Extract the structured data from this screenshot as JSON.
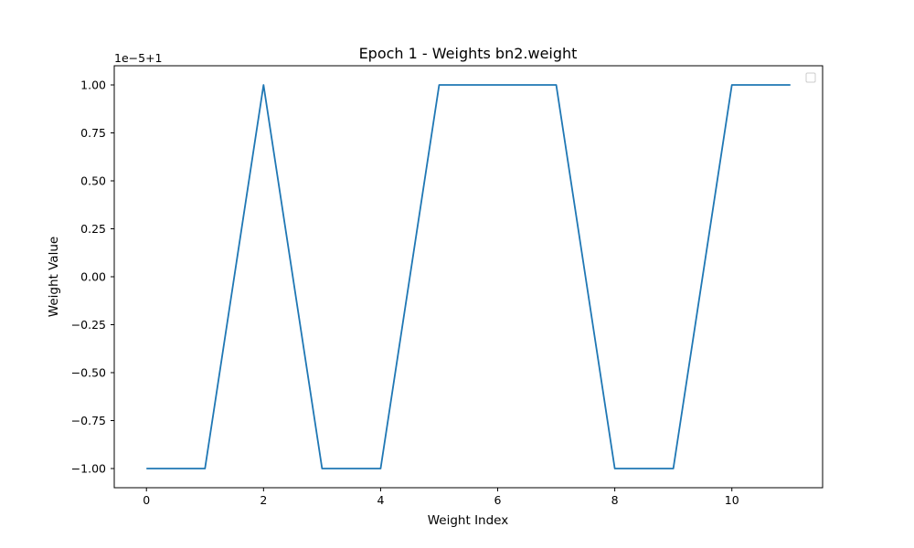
{
  "chart_data": {
    "type": "line",
    "title": "Epoch 1 - Weights bn2.weight",
    "xlabel": "Weight Index",
    "ylabel": "Weight Value",
    "offset_label": "1e−5+1",
    "x": [
      0,
      1,
      2,
      3,
      4,
      5,
      6,
      7,
      8,
      9,
      10,
      11
    ],
    "series": [
      {
        "values": [
          -1.0,
          -1.0,
          1.0,
          -1.0,
          -1.0,
          1.0,
          1.0,
          1.0,
          -1.0,
          -1.0,
          1.0,
          1.0
        ],
        "color": "#1f77b4"
      }
    ],
    "xlim": [
      -0.55,
      11.55
    ],
    "ylim": [
      -1.1,
      1.1
    ],
    "xticks": [
      0,
      2,
      4,
      6,
      8,
      10
    ],
    "xtick_labels": [
      "0",
      "2",
      "4",
      "6",
      "8",
      "10"
    ],
    "yticks": [
      -1.0,
      -0.75,
      -0.5,
      -0.25,
      0.0,
      0.25,
      0.5,
      0.75,
      1.0
    ],
    "ytick_labels": [
      "−1.00",
      "−0.75",
      "−0.50",
      "−0.25",
      "0.00",
      "0.25",
      "0.50",
      "0.75",
      "1.00"
    ],
    "grid": false,
    "legend": {
      "placement": "upper-right",
      "entries": []
    }
  }
}
